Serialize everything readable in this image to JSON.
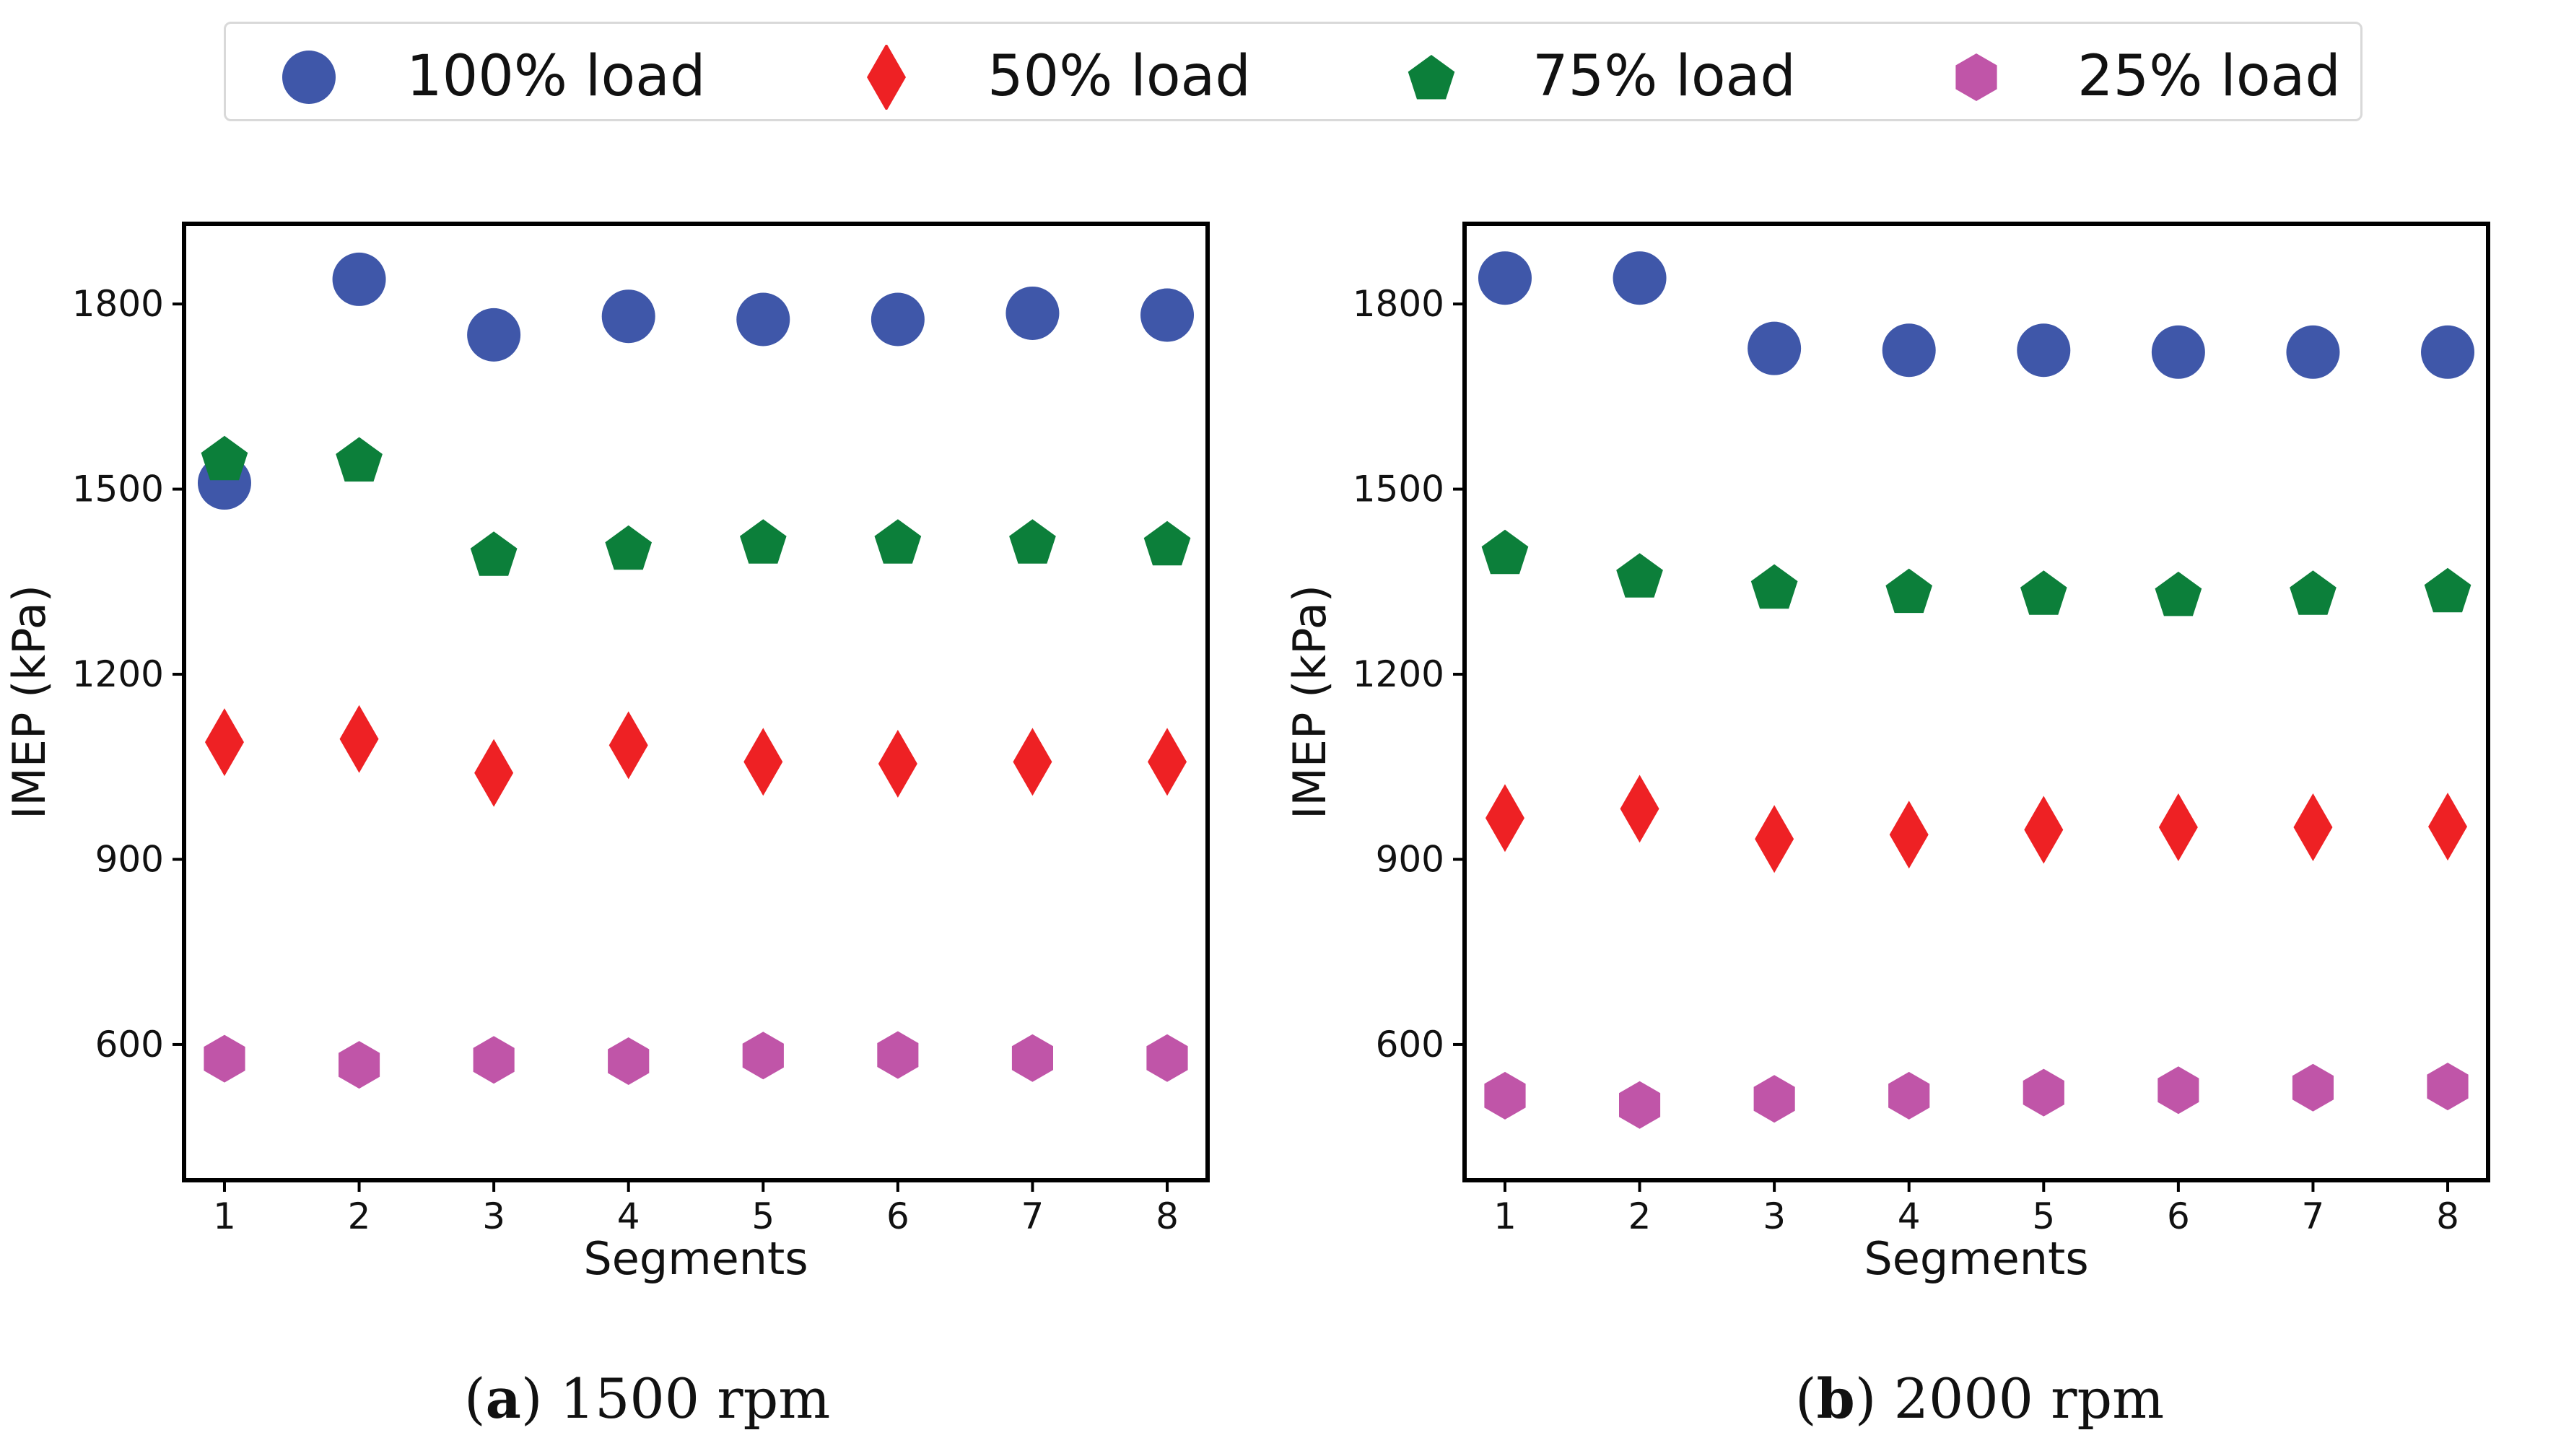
{
  "legend": {
    "items": [
      {
        "label": "100% load",
        "color": "#3f57a9",
        "marker": "circle"
      },
      {
        "label": "50% load",
        "color": "#ee2124",
        "marker": "diamond"
      },
      {
        "label": "75% load",
        "color": "#0c7f3a",
        "marker": "pentagon"
      },
      {
        "label": "25% load",
        "color": "#c055a8",
        "marker": "hexagon"
      }
    ]
  },
  "chart_data": [
    {
      "type": "scatter",
      "title": "",
      "xlabel": "Segments",
      "ylabel": "IMEP (kPa)",
      "x": [
        1,
        2,
        3,
        4,
        5,
        6,
        7,
        8
      ],
      "xlim": [
        0.7,
        8.3
      ],
      "ylim": [
        380,
        1930
      ],
      "yticks": [
        600,
        900,
        1200,
        1500,
        1800
      ],
      "xticks": [
        1,
        2,
        3,
        4,
        5,
        6,
        7,
        8
      ],
      "caption_letter": "a",
      "caption_text": " 1500 rpm",
      "caption_open": "(",
      "caption_close": ")",
      "series": [
        {
          "name": "100% load",
          "values": [
            1510,
            1840,
            1750,
            1780,
            1775,
            1775,
            1785,
            1782
          ]
        },
        {
          "name": "50% load",
          "values": [
            1090,
            1095,
            1040,
            1085,
            1058,
            1055,
            1058,
            1058
          ]
        },
        {
          "name": "75% load",
          "values": [
            1550,
            1548,
            1395,
            1405,
            1415,
            1415,
            1415,
            1412
          ]
        },
        {
          "name": "25% load",
          "values": [
            577,
            567,
            575,
            573,
            582,
            583,
            578,
            578
          ]
        }
      ]
    },
    {
      "type": "scatter",
      "title": "",
      "xlabel": "Segments",
      "ylabel": "IMEP (kPa)",
      "x": [
        1,
        2,
        3,
        4,
        5,
        6,
        7,
        8
      ],
      "xlim": [
        0.7,
        8.3
      ],
      "ylim": [
        380,
        1930
      ],
      "yticks": [
        600,
        900,
        1200,
        1500,
        1800
      ],
      "xticks": [
        1,
        2,
        3,
        4,
        5,
        6,
        7,
        8
      ],
      "caption_letter": "b",
      "caption_text": " 2000 rpm",
      "caption_open": "(",
      "caption_close": ")",
      "series": [
        {
          "name": "100% load",
          "values": [
            1842,
            1842,
            1728,
            1725,
            1725,
            1722,
            1722,
            1722
          ]
        },
        {
          "name": "50% load",
          "values": [
            967,
            982,
            933,
            940,
            948,
            952,
            952,
            953
          ]
        },
        {
          "name": "75% load",
          "values": [
            1398,
            1360,
            1342,
            1335,
            1332,
            1330,
            1332,
            1336
          ]
        },
        {
          "name": "25% load",
          "values": [
            517,
            502,
            512,
            517,
            522,
            526,
            530,
            532
          ]
        }
      ]
    }
  ]
}
